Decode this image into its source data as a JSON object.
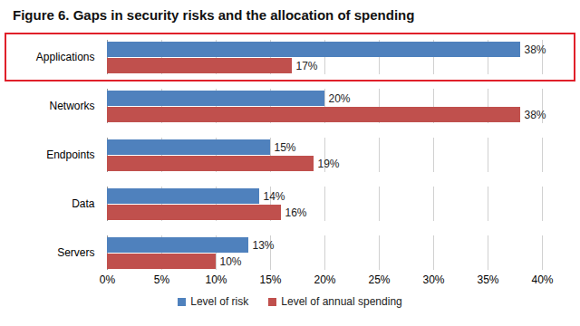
{
  "chart_data": {
    "type": "bar",
    "orientation": "horizontal",
    "title": "Figure 6. Gaps in security risks and the allocation of spending",
    "categories": [
      "Applications",
      "Networks",
      "Endpoints",
      "Data",
      "Servers"
    ],
    "series": [
      {
        "name": "Level of risk",
        "color": "#4f81bd",
        "values": [
          38,
          20,
          15,
          14,
          13
        ],
        "value_labels": [
          "38%",
          "20%",
          "15%",
          "14%",
          "13%"
        ]
      },
      {
        "name": "Level of annual spending",
        "color": "#c0504d",
        "values": [
          17,
          38,
          19,
          16,
          10
        ],
        "value_labels": [
          "17%",
          "38%",
          "19%",
          "16%",
          "10%"
        ]
      }
    ],
    "xlim": [
      0,
      40
    ],
    "xticks": [
      {
        "value": 0,
        "label": "0%"
      },
      {
        "value": 5,
        "label": "5%"
      },
      {
        "value": 10,
        "label": "10%"
      },
      {
        "value": 15,
        "label": "15%"
      },
      {
        "value": 20,
        "label": "20%"
      },
      {
        "value": 25,
        "label": "25%"
      },
      {
        "value": 30,
        "label": "30%"
      },
      {
        "value": 35,
        "label": "35%"
      },
      {
        "value": 40,
        "label": "40%"
      }
    ],
    "grid": true,
    "data_labels": true,
    "legend": "bottom"
  }
}
